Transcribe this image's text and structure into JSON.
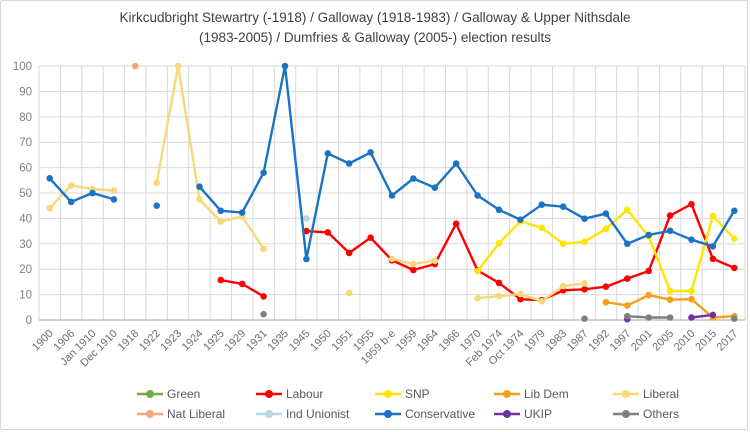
{
  "window": {
    "background": "#FFFFFF",
    "border_color": "#D6D6D6",
    "gridline_color": "#D9D9D9",
    "axis_line_color": "#A6A6A6"
  },
  "chart_data": {
    "type": "line",
    "title_line1": "Kirkcudbright Stewartry (-1918) / Galloway (1918-1983) / Galloway & Upper Nithsdale",
    "title_line2": "(1983-2005) / Dumfries & Galloway (2005-) election results",
    "xlabel": "",
    "ylabel": "",
    "ylim": [
      0,
      100
    ],
    "ytick_step": 10,
    "yticks": [
      0,
      10,
      20,
      30,
      40,
      50,
      60,
      70,
      80,
      90,
      100
    ],
    "grid": true,
    "legend_position": "bottom",
    "legend_columns": 5,
    "categories": [
      "1900",
      "1906",
      "Jan 1910",
      "Dec 1910",
      "1918",
      "1922",
      "1923",
      "1924",
      "1925",
      "1929",
      "1931",
      "1935",
      "1945",
      "1950",
      "1951",
      "1955",
      "1959 b-e",
      "1959",
      "1964",
      "1966",
      "1970",
      "Feb 1974",
      "Oct 1974",
      "1979",
      "1983",
      "1987",
      "1992",
      "1997",
      "2001",
      "2005",
      "2010",
      "2015",
      "2017"
    ],
    "series": [
      {
        "name": "Green",
        "color": "#70AD47",
        "values": [
          null,
          null,
          null,
          null,
          null,
          null,
          null,
          null,
          null,
          null,
          null,
          null,
          null,
          null,
          null,
          null,
          null,
          null,
          null,
          null,
          null,
          null,
          null,
          null,
          null,
          null,
          null,
          null,
          null,
          null,
          null,
          null,
          null
        ]
      },
      {
        "name": "Labour",
        "color": "#FF0000",
        "values": [
          null,
          null,
          null,
          null,
          null,
          null,
          null,
          null,
          15.7,
          14.2,
          9.3,
          null,
          35,
          34.5,
          26.4,
          32.4,
          23.5,
          19.7,
          22,
          37.9,
          19.5,
          14.6,
          8.2,
          7.8,
          11.7,
          12.1,
          13.1,
          16.3,
          19.3,
          41.1,
          45.6,
          24.1,
          20.5
        ]
      },
      {
        "name": "SNP",
        "color": "#FFE500",
        "values": [
          null,
          null,
          null,
          null,
          null,
          null,
          null,
          null,
          null,
          null,
          null,
          null,
          null,
          null,
          null,
          null,
          null,
          null,
          null,
          null,
          19.3,
          30.2,
          38.8,
          36.3,
          30,
          30.8,
          35.9,
          43.4,
          32.9,
          11.4,
          11.4,
          40.9,
          32
        ]
      },
      {
        "name": "Lib Dem",
        "color": "#F79E1B",
        "values": [
          null,
          null,
          null,
          null,
          null,
          null,
          null,
          null,
          null,
          null,
          null,
          null,
          null,
          null,
          null,
          null,
          null,
          null,
          null,
          null,
          null,
          null,
          null,
          null,
          null,
          null,
          7,
          5.7,
          9.8,
          8,
          8.2,
          1,
          1.5
        ]
      },
      {
        "name": "Liberal",
        "color": "#F8D878",
        "values": [
          44,
          53,
          51.5,
          51,
          null,
          54,
          100,
          47.5,
          38.7,
          40.7,
          28,
          null,
          null,
          null,
          10.6,
          null,
          24.1,
          22.1,
          23.3,
          null,
          8.6,
          9.4,
          10.2,
          7.4,
          13.4,
          14.4,
          null,
          null,
          null,
          null,
          null,
          null,
          null
        ]
      },
      {
        "name": "Nat Liberal",
        "color": "#F4A67C",
        "values": [
          null,
          null,
          null,
          null,
          100,
          null,
          null,
          null,
          null,
          null,
          null,
          null,
          null,
          null,
          null,
          null,
          null,
          null,
          null,
          null,
          null,
          null,
          null,
          null,
          null,
          null,
          null,
          null,
          null,
          null,
          null,
          null,
          null
        ]
      },
      {
        "name": "Ind Unionist",
        "color": "#B9D5EA",
        "values": [
          null,
          null,
          null,
          null,
          null,
          null,
          null,
          null,
          null,
          null,
          null,
          null,
          40,
          null,
          null,
          null,
          null,
          null,
          null,
          null,
          null,
          null,
          null,
          null,
          null,
          null,
          null,
          null,
          null,
          null,
          null,
          null,
          null
        ]
      },
      {
        "name": "Conservative",
        "color": "#1B73C4",
        "values": [
          55.8,
          46.5,
          50,
          47.5,
          null,
          45,
          null,
          52.5,
          43,
          42.3,
          58,
          100,
          24,
          65.6,
          61.6,
          66,
          49,
          55.7,
          52.1,
          61.6,
          49,
          43.4,
          39.5,
          45.4,
          44.6,
          39.9,
          41.9,
          30,
          33.5,
          35.1,
          31.6,
          29,
          43
        ]
      },
      {
        "name": "UKIP",
        "color": "#7030A0",
        "values": [
          null,
          null,
          null,
          null,
          null,
          null,
          null,
          null,
          null,
          null,
          null,
          null,
          null,
          null,
          null,
          null,
          null,
          null,
          null,
          null,
          null,
          null,
          null,
          null,
          null,
          null,
          null,
          0.3,
          null,
          null,
          1,
          2,
          null
        ]
      },
      {
        "name": "Others",
        "color": "#808080",
        "values": [
          null,
          null,
          null,
          null,
          null,
          null,
          null,
          null,
          null,
          null,
          2.3,
          null,
          null,
          null,
          null,
          null,
          null,
          null,
          null,
          null,
          null,
          null,
          null,
          null,
          null,
          0.5,
          null,
          1.5,
          1,
          1,
          null,
          null,
          0.5
        ]
      }
    ]
  }
}
